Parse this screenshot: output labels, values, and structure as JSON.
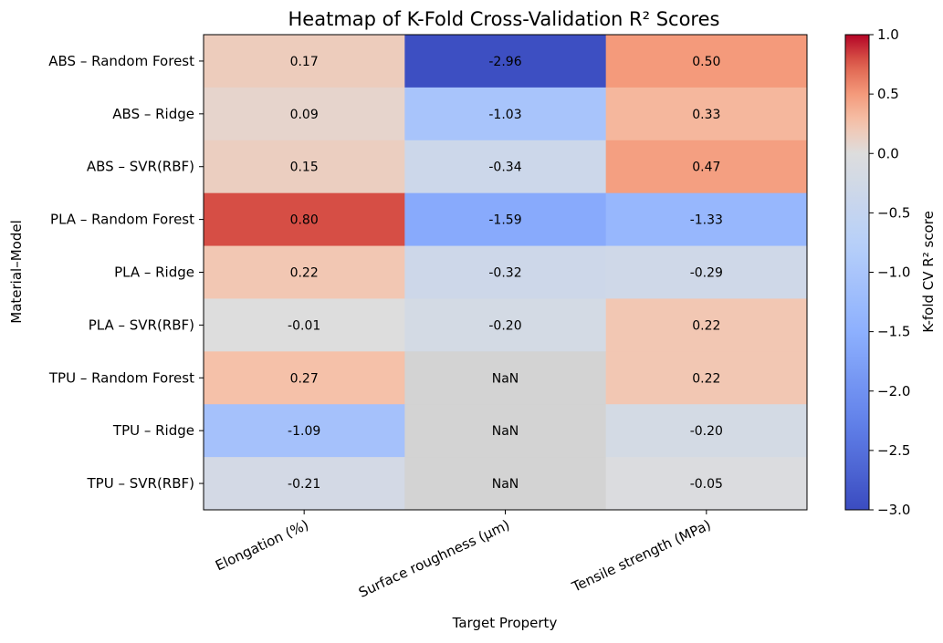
{
  "chart_data": {
    "type": "heatmap",
    "title": "Heatmap of K-Fold Cross-Validation R² Scores",
    "xlabel": "Target Property",
    "ylabel": "Material–Model",
    "colorbar_label": "K-fold CV R² score",
    "colormap": "coolwarm",
    "nan_color": "#d3d3d3",
    "vmin": -3.0,
    "vmax": 1.0,
    "colorbar_ticks": [
      "1.0",
      "0.5",
      "0.0",
      "−0.5",
      "−1.0",
      "−1.5",
      "−2.0",
      "−2.5",
      "−3.0"
    ],
    "colorbar_tick_values": [
      1.0,
      0.5,
      0.0,
      -0.5,
      -1.0,
      -1.5,
      -2.0,
      -2.5,
      -3.0
    ],
    "columns": [
      "Elongation (%)",
      "Surface roughness (µm)",
      "Tensile strength (MPa)"
    ],
    "rows": [
      "ABS – Random Forest",
      "ABS – Ridge",
      "ABS – SVR(RBF)",
      "PLA – Random Forest",
      "PLA – Ridge",
      "PLA – SVR(RBF)",
      "TPU – Random Forest",
      "TPU – Ridge",
      "TPU – SVR(RBF)"
    ],
    "values": [
      [
        0.17,
        -2.96,
        0.5
      ],
      [
        0.09,
        -1.03,
        0.33
      ],
      [
        0.15,
        -0.34,
        0.47
      ],
      [
        0.8,
        -1.59,
        -1.33
      ],
      [
        0.22,
        -0.32,
        -0.29
      ],
      [
        -0.01,
        -0.2,
        0.22
      ],
      [
        0.27,
        null,
        0.22
      ],
      [
        -1.09,
        null,
        -0.2
      ],
      [
        -0.21,
        null,
        -0.05
      ]
    ],
    "cell_labels": [
      [
        "0.17",
        "-2.96",
        "0.50"
      ],
      [
        "0.09",
        "-1.03",
        "0.33"
      ],
      [
        "0.15",
        "-0.34",
        "0.47"
      ],
      [
        "0.80",
        "-1.59",
        "-1.33"
      ],
      [
        "0.22",
        "-0.32",
        "-0.29"
      ],
      [
        "-0.01",
        "-0.20",
        "0.22"
      ],
      [
        "0.27",
        "NaN",
        "0.22"
      ],
      [
        "-1.09",
        "NaN",
        "-0.20"
      ],
      [
        "-0.21",
        "NaN",
        "-0.05"
      ]
    ]
  }
}
